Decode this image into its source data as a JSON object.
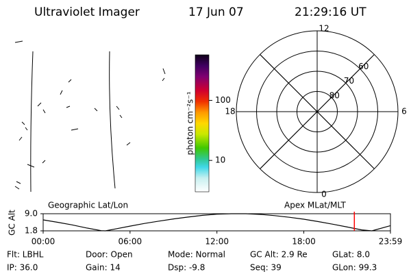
{
  "header": {
    "title": "Ultraviolet Imager",
    "date": "17 Jun 07",
    "time": "21:29:16 UT"
  },
  "colorbar": {
    "label": "photon cm⁻²s⁻¹",
    "log_scale": true,
    "lim": [
      3,
      575
    ],
    "ticks": [
      10,
      100
    ]
  },
  "polar": {
    "outer_lat": 50,
    "lat_rings": [
      60,
      70,
      80
    ],
    "mlt_ticks": [
      12,
      18,
      6,
      0
    ]
  },
  "timeline": {
    "left_label": "Geographic Lat/Lon",
    "right_label": "Apex MLat/MLT",
    "y_label": "GC Alt",
    "ylim": [
      1.8,
      9.0
    ],
    "yticks": [
      {
        "value": 9.0,
        "label": "9.0"
      },
      {
        "value": 1.8,
        "label": "1.8"
      }
    ],
    "xlim": [
      0,
      23.983
    ],
    "xticks": [
      {
        "value": 0,
        "label": "00:00"
      },
      {
        "value": 6,
        "label": "06:00"
      },
      {
        "value": 12,
        "label": "12:00"
      },
      {
        "value": 18,
        "label": "18:00"
      },
      {
        "value": 23.983,
        "label": "23:59"
      }
    ],
    "x": [
      0,
      1,
      2,
      3,
      4,
      4.3,
      5,
      6,
      7,
      8,
      9,
      10,
      11,
      12,
      13,
      14,
      15,
      16,
      17,
      18,
      19,
      20,
      21,
      22,
      22.7,
      23.983
    ],
    "values": [
      6.4,
      5.4,
      4.3,
      3.0,
      1.9,
      1.8,
      2.6,
      3.8,
      4.9,
      5.9,
      6.8,
      7.6,
      8.3,
      8.8,
      9.0,
      9.0,
      8.7,
      8.2,
      7.5,
      6.7,
      5.7,
      4.6,
      3.4,
      2.2,
      1.8,
      4.0
    ],
    "line_color": "#000000",
    "marker_x": 21.49,
    "marker_color": "#ff0000"
  },
  "footer": {
    "rows": [
      [
        "Flt: LBHL",
        "Door: Open",
        "Mode: Normal",
        "GC Alt: 2.9 Re",
        "GLat: 8.0"
      ],
      [
        "IP: 36.0",
        "Gain: 14",
        "Dsp: -9.8",
        "Seq: 39",
        "GLon: 99.3"
      ]
    ]
  }
}
